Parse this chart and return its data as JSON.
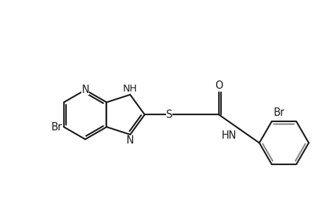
{
  "bg_color": "#ffffff",
  "line_color": "#1a1a1a",
  "line_width": 1.6,
  "font_size": 10.5,
  "fig_width": 4.6,
  "fig_height": 3.0,
  "dpi": 100,
  "xlim": [
    0,
    9.2
  ],
  "ylim": [
    1.0,
    6.5
  ]
}
